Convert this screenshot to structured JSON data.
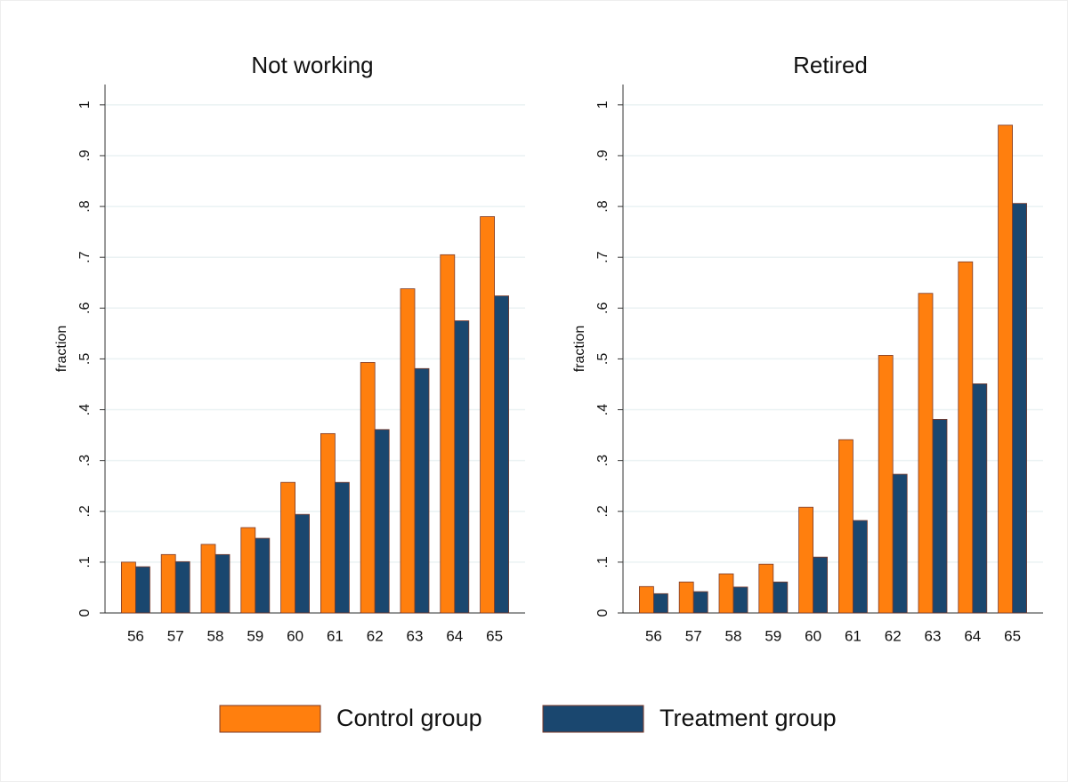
{
  "chart_data": [
    {
      "type": "bar",
      "title": "Not working",
      "y_label": "fraction",
      "categories": [
        "56",
        "57",
        "58",
        "59",
        "60",
        "61",
        "62",
        "63",
        "64",
        "65"
      ],
      "series": [
        {
          "name": "Control group",
          "color": "#ff7f0e",
          "values": [
            0.1,
            0.115,
            0.135,
            0.168,
            0.257,
            0.353,
            0.493,
            0.638,
            0.705,
            0.78
          ]
        },
        {
          "name": "Treatment group",
          "color": "#1a476f",
          "values": [
            0.091,
            0.101,
            0.115,
            0.147,
            0.194,
            0.257,
            0.361,
            0.481,
            0.575,
            0.624
          ]
        }
      ],
      "ylim": [
        0,
        1.04
      ],
      "yticks": [
        0,
        {
          "value": 0.1,
          "label": ".1"
        },
        {
          "value": 0.2,
          "label": ".2"
        },
        {
          "value": 0.3,
          "label": ".3"
        },
        {
          "value": 0.4,
          "label": ".4"
        },
        {
          "value": 0.5,
          "label": ".5"
        },
        {
          "value": 0.6,
          "label": ".6"
        },
        {
          "value": 0.7,
          "label": ".7"
        },
        {
          "value": 0.8,
          "label": ".8"
        },
        {
          "value": 0.9,
          "label": ".9"
        },
        1
      ],
      "grid": true
    },
    {
      "type": "bar",
      "title": "Retired",
      "y_label": "fraction",
      "categories": [
        "56",
        "57",
        "58",
        "59",
        "60",
        "61",
        "62",
        "63",
        "64",
        "65"
      ],
      "series": [
        {
          "name": "Control group",
          "color": "#ff7f0e",
          "values": [
            0.052,
            0.061,
            0.077,
            0.096,
            0.208,
            0.341,
            0.507,
            0.629,
            0.691,
            0.96
          ]
        },
        {
          "name": "Treatment group",
          "color": "#1a476f",
          "values": [
            0.038,
            0.042,
            0.051,
            0.061,
            0.11,
            0.182,
            0.273,
            0.381,
            0.451,
            0.806
          ]
        }
      ],
      "ylim": [
        0,
        1.04
      ],
      "yticks": [
        0,
        {
          "value": 0.1,
          "label": ".1"
        },
        {
          "value": 0.2,
          "label": ".2"
        },
        {
          "value": 0.3,
          "label": ".3"
        },
        {
          "value": 0.4,
          "label": ".4"
        },
        {
          "value": 0.5,
          "label": ".5"
        },
        {
          "value": 0.6,
          "label": ".6"
        },
        {
          "value": 0.7,
          "label": ".7"
        },
        {
          "value": 0.8,
          "label": ".8"
        },
        {
          "value": 0.9,
          "label": ".9"
        },
        1
      ],
      "grid": true
    }
  ]
}
